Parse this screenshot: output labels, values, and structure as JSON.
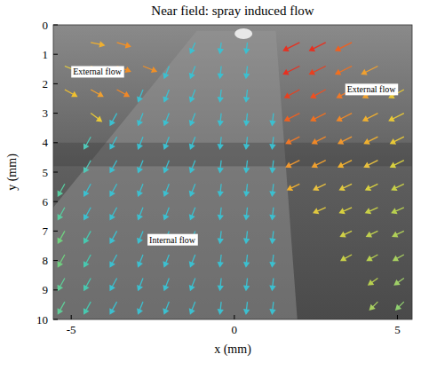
{
  "chart_data": {
    "type": "quiver",
    "title": "Near field: spray induced flow",
    "x_label": "x (mm)",
    "y_label": "y (mm)",
    "xlim": [
      -5.55,
      5.45
    ],
    "ylim": [
      0,
      10
    ],
    "xticks": [
      -5,
      0,
      5
    ],
    "yticks": [
      0,
      1,
      2,
      3,
      4,
      5,
      6,
      7,
      8,
      9,
      10
    ],
    "annotations": [
      {
        "text": "External flow",
        "x": -4.2,
        "y": 1.7
      },
      {
        "text": "External flow",
        "x": 4.2,
        "y": 2.3
      },
      {
        "text": "Internal flow",
        "x": -1.9,
        "y": 7.4
      }
    ],
    "vectors": [
      {
        "x": -4.4,
        "y": 0.6,
        "u": 0.5,
        "v": 0.1,
        "color": "#f0b030"
      },
      {
        "x": -3.6,
        "y": 0.6,
        "u": 0.5,
        "v": 0.15,
        "color": "#f09028"
      },
      {
        "x": -1.2,
        "y": 0.6,
        "u": -0.18,
        "v": 0.4,
        "color": "#3cc0d0"
      },
      {
        "x": -0.4,
        "y": 0.6,
        "u": -0.05,
        "v": 0.4,
        "color": "#3cc0d0"
      },
      {
        "x": 0.4,
        "y": 0.6,
        "u": -0.05,
        "v": 0.4,
        "color": "#3cc0d0"
      },
      {
        "x": 2.0,
        "y": 0.6,
        "u": -0.6,
        "v": 0.3,
        "color": "#e83020"
      },
      {
        "x": 2.8,
        "y": 0.6,
        "u": -0.6,
        "v": 0.3,
        "color": "#e83020"
      },
      {
        "x": 3.6,
        "y": 0.6,
        "u": -0.6,
        "v": 0.3,
        "color": "#f06020"
      },
      {
        "x": -5.2,
        "y": 1.4,
        "u": 0.5,
        "v": 0.2,
        "color": "#e8d040"
      },
      {
        "x": -4.4,
        "y": 1.4,
        "u": 0.5,
        "v": 0.2,
        "color": "#f0b030"
      },
      {
        "x": -3.6,
        "y": 1.4,
        "u": 0.5,
        "v": 0.2,
        "color": "#f09028"
      },
      {
        "x": -2.8,
        "y": 1.4,
        "u": 0.5,
        "v": 0.2,
        "color": "#f09028"
      },
      {
        "x": -2.0,
        "y": 1.4,
        "u": -0.18,
        "v": 0.45,
        "color": "#3cc0d0"
      },
      {
        "x": -1.2,
        "y": 1.4,
        "u": -0.18,
        "v": 0.45,
        "color": "#3cc0d0"
      },
      {
        "x": -0.4,
        "y": 1.4,
        "u": -0.05,
        "v": 0.45,
        "color": "#3cc0d0"
      },
      {
        "x": 0.4,
        "y": 1.4,
        "u": -0.05,
        "v": 0.45,
        "color": "#3cc0d0"
      },
      {
        "x": 2.0,
        "y": 1.4,
        "u": -0.6,
        "v": 0.3,
        "color": "#e83020"
      },
      {
        "x": 2.8,
        "y": 1.4,
        "u": -0.6,
        "v": 0.3,
        "color": "#e84020"
      },
      {
        "x": 3.6,
        "y": 1.4,
        "u": -0.6,
        "v": 0.3,
        "color": "#f07020"
      },
      {
        "x": 4.4,
        "y": 1.4,
        "u": -0.6,
        "v": 0.3,
        "color": "#f0a030"
      },
      {
        "x": -5.2,
        "y": 2.2,
        "u": 0.45,
        "v": 0.25,
        "color": "#f0c030"
      },
      {
        "x": -4.4,
        "y": 2.2,
        "u": 0.45,
        "v": 0.25,
        "color": "#f0a030"
      },
      {
        "x": -3.6,
        "y": 2.2,
        "u": 0.45,
        "v": 0.25,
        "color": "#f08828"
      },
      {
        "x": -2.8,
        "y": 2.2,
        "u": -0.18,
        "v": 0.45,
        "color": "#3cc0d0"
      },
      {
        "x": -2.0,
        "y": 2.2,
        "u": -0.18,
        "v": 0.45,
        "color": "#3cc0d0"
      },
      {
        "x": -1.2,
        "y": 2.2,
        "u": -0.18,
        "v": 0.45,
        "color": "#3cc0d0"
      },
      {
        "x": -0.4,
        "y": 2.2,
        "u": -0.05,
        "v": 0.45,
        "color": "#3cc0d0"
      },
      {
        "x": 0.4,
        "y": 2.2,
        "u": -0.05,
        "v": 0.45,
        "color": "#3cc0d0"
      },
      {
        "x": 2.0,
        "y": 2.2,
        "u": -0.55,
        "v": 0.3,
        "color": "#e84020"
      },
      {
        "x": 2.8,
        "y": 2.2,
        "u": -0.55,
        "v": 0.3,
        "color": "#f05020"
      },
      {
        "x": 3.6,
        "y": 2.2,
        "u": -0.55,
        "v": 0.3,
        "color": "#f07828"
      },
      {
        "x": 4.4,
        "y": 2.2,
        "u": -0.55,
        "v": 0.3,
        "color": "#f0a030"
      },
      {
        "x": 5.2,
        "y": 2.2,
        "u": -0.55,
        "v": 0.3,
        "color": "#e8c838"
      },
      {
        "x": -4.4,
        "y": 3.0,
        "u": 0.4,
        "v": 0.3,
        "color": "#e8c838"
      },
      {
        "x": -3.6,
        "y": 3.0,
        "u": -0.25,
        "v": 0.45,
        "color": "#3cc0d0"
      },
      {
        "x": -2.8,
        "y": 3.0,
        "u": -0.18,
        "v": 0.45,
        "color": "#3cc0d0"
      },
      {
        "x": -2.0,
        "y": 3.0,
        "u": -0.18,
        "v": 0.45,
        "color": "#3cc0d0"
      },
      {
        "x": -1.2,
        "y": 3.0,
        "u": -0.18,
        "v": 0.45,
        "color": "#3cc0d0"
      },
      {
        "x": -0.4,
        "y": 3.0,
        "u": -0.05,
        "v": 0.45,
        "color": "#3cc0d0"
      },
      {
        "x": 0.4,
        "y": 3.0,
        "u": -0.05,
        "v": 0.45,
        "color": "#3cc0d0"
      },
      {
        "x": 1.2,
        "y": 3.0,
        "u": -0.05,
        "v": 0.45,
        "color": "#3cc0d0"
      },
      {
        "x": 2.0,
        "y": 3.0,
        "u": -0.55,
        "v": 0.28,
        "color": "#f06020"
      },
      {
        "x": 2.8,
        "y": 3.0,
        "u": -0.55,
        "v": 0.28,
        "color": "#f07020"
      },
      {
        "x": 3.6,
        "y": 3.0,
        "u": -0.55,
        "v": 0.28,
        "color": "#f08828"
      },
      {
        "x": 4.4,
        "y": 3.0,
        "u": -0.55,
        "v": 0.28,
        "color": "#f0b030"
      },
      {
        "x": 5.2,
        "y": 3.0,
        "u": -0.55,
        "v": 0.28,
        "color": "#e8c838"
      },
      {
        "x": -4.4,
        "y": 3.8,
        "u": -0.25,
        "v": 0.45,
        "color": "#50c8b8"
      },
      {
        "x": -3.6,
        "y": 3.8,
        "u": -0.25,
        "v": 0.45,
        "color": "#3cc0d0"
      },
      {
        "x": -2.8,
        "y": 3.8,
        "u": -0.18,
        "v": 0.45,
        "color": "#3cc0d0"
      },
      {
        "x": -2.0,
        "y": 3.8,
        "u": -0.18,
        "v": 0.45,
        "color": "#3cc0d0"
      },
      {
        "x": -1.2,
        "y": 3.8,
        "u": -0.18,
        "v": 0.45,
        "color": "#3cc0d0"
      },
      {
        "x": -0.4,
        "y": 3.8,
        "u": -0.05,
        "v": 0.45,
        "color": "#3cc0d0"
      },
      {
        "x": 0.4,
        "y": 3.8,
        "u": -0.05,
        "v": 0.45,
        "color": "#3cc0d0"
      },
      {
        "x": 1.2,
        "y": 3.8,
        "u": -0.05,
        "v": 0.45,
        "color": "#3cc0d0"
      },
      {
        "x": 2.0,
        "y": 3.8,
        "u": -0.5,
        "v": 0.25,
        "color": "#f07828"
      },
      {
        "x": 2.8,
        "y": 3.8,
        "u": -0.5,
        "v": 0.25,
        "color": "#f08828"
      },
      {
        "x": 3.6,
        "y": 3.8,
        "u": -0.5,
        "v": 0.25,
        "color": "#f09830"
      },
      {
        "x": 4.4,
        "y": 3.8,
        "u": -0.5,
        "v": 0.25,
        "color": "#f0b030"
      },
      {
        "x": 5.2,
        "y": 3.8,
        "u": -0.5,
        "v": 0.25,
        "color": "#e8c838"
      },
      {
        "x": -4.4,
        "y": 4.6,
        "u": -0.25,
        "v": 0.45,
        "color": "#50c8b8"
      },
      {
        "x": -3.6,
        "y": 4.6,
        "u": -0.25,
        "v": 0.45,
        "color": "#3cc0d0"
      },
      {
        "x": -2.8,
        "y": 4.6,
        "u": -0.18,
        "v": 0.45,
        "color": "#3cc0d0"
      },
      {
        "x": -2.0,
        "y": 4.6,
        "u": -0.18,
        "v": 0.45,
        "color": "#3cc0d0"
      },
      {
        "x": -1.2,
        "y": 4.6,
        "u": -0.18,
        "v": 0.45,
        "color": "#3cc0d0"
      },
      {
        "x": -0.4,
        "y": 4.6,
        "u": -0.05,
        "v": 0.45,
        "color": "#3cc0d0"
      },
      {
        "x": 0.4,
        "y": 4.6,
        "u": -0.05,
        "v": 0.45,
        "color": "#3cc0d0"
      },
      {
        "x": 1.2,
        "y": 4.6,
        "u": -0.05,
        "v": 0.45,
        "color": "#3cc0d0"
      },
      {
        "x": 2.0,
        "y": 4.6,
        "u": -0.5,
        "v": 0.25,
        "color": "#f09830"
      },
      {
        "x": 2.8,
        "y": 4.6,
        "u": -0.5,
        "v": 0.25,
        "color": "#f0a030"
      },
      {
        "x": 3.6,
        "y": 4.6,
        "u": -0.5,
        "v": 0.25,
        "color": "#f0b030"
      },
      {
        "x": 4.4,
        "y": 4.6,
        "u": -0.5,
        "v": 0.25,
        "color": "#e8c040"
      },
      {
        "x": 5.2,
        "y": 4.6,
        "u": -0.5,
        "v": 0.25,
        "color": "#d8d040"
      },
      {
        "x": -5.2,
        "y": 5.4,
        "u": -0.25,
        "v": 0.45,
        "color": "#58cca0"
      },
      {
        "x": -4.4,
        "y": 5.4,
        "u": -0.25,
        "v": 0.45,
        "color": "#3cc0d0"
      },
      {
        "x": -3.6,
        "y": 5.4,
        "u": -0.25,
        "v": 0.45,
        "color": "#3cc0d0"
      },
      {
        "x": -2.8,
        "y": 5.4,
        "u": -0.18,
        "v": 0.45,
        "color": "#3cc0d0"
      },
      {
        "x": -2.0,
        "y": 5.4,
        "u": -0.18,
        "v": 0.45,
        "color": "#3cc0d0"
      },
      {
        "x": -1.2,
        "y": 5.4,
        "u": -0.18,
        "v": 0.45,
        "color": "#3cc0d0"
      },
      {
        "x": -0.4,
        "y": 5.4,
        "u": -0.05,
        "v": 0.45,
        "color": "#3cc0d0"
      },
      {
        "x": 0.4,
        "y": 5.4,
        "u": -0.05,
        "v": 0.45,
        "color": "#3cc0d0"
      },
      {
        "x": 1.2,
        "y": 5.4,
        "u": -0.05,
        "v": 0.45,
        "color": "#3cc0d0"
      },
      {
        "x": 2.0,
        "y": 5.4,
        "u": -0.45,
        "v": 0.22,
        "color": "#f0b030"
      },
      {
        "x": 2.8,
        "y": 5.4,
        "u": -0.45,
        "v": 0.22,
        "color": "#e8c040"
      },
      {
        "x": 3.6,
        "y": 5.4,
        "u": -0.45,
        "v": 0.22,
        "color": "#e0c840"
      },
      {
        "x": 4.4,
        "y": 5.4,
        "u": -0.45,
        "v": 0.22,
        "color": "#d8d040"
      },
      {
        "x": 5.2,
        "y": 5.4,
        "u": -0.45,
        "v": 0.22,
        "color": "#c8d048"
      },
      {
        "x": -5.2,
        "y": 6.2,
        "u": -0.25,
        "v": 0.45,
        "color": "#58cca0"
      },
      {
        "x": -4.4,
        "y": 6.2,
        "u": -0.25,
        "v": 0.45,
        "color": "#3cc0d0"
      },
      {
        "x": -3.6,
        "y": 6.2,
        "u": -0.25,
        "v": 0.45,
        "color": "#3cc0d0"
      },
      {
        "x": -2.8,
        "y": 6.2,
        "u": -0.18,
        "v": 0.45,
        "color": "#3cc0d0"
      },
      {
        "x": -2.0,
        "y": 6.2,
        "u": -0.18,
        "v": 0.45,
        "color": "#3cc0d0"
      },
      {
        "x": -1.2,
        "y": 6.2,
        "u": -0.18,
        "v": 0.45,
        "color": "#3cc0d0"
      },
      {
        "x": -0.4,
        "y": 6.2,
        "u": -0.05,
        "v": 0.45,
        "color": "#3cc0d0"
      },
      {
        "x": 0.4,
        "y": 6.2,
        "u": -0.05,
        "v": 0.45,
        "color": "#3cc0d0"
      },
      {
        "x": 1.2,
        "y": 6.2,
        "u": -0.05,
        "v": 0.45,
        "color": "#3cc0d0"
      },
      {
        "x": 2.8,
        "y": 6.2,
        "u": -0.45,
        "v": 0.2,
        "color": "#e0c840"
      },
      {
        "x": 3.6,
        "y": 6.2,
        "u": -0.45,
        "v": 0.2,
        "color": "#d8d040"
      },
      {
        "x": 4.4,
        "y": 6.2,
        "u": -0.45,
        "v": 0.2,
        "color": "#c8d048"
      },
      {
        "x": 5.2,
        "y": 6.2,
        "u": -0.45,
        "v": 0.2,
        "color": "#b8d050"
      },
      {
        "x": -5.2,
        "y": 7.0,
        "u": -0.25,
        "v": 0.45,
        "color": "#70d080"
      },
      {
        "x": -4.4,
        "y": 7.0,
        "u": -0.25,
        "v": 0.45,
        "color": "#48c8b0"
      },
      {
        "x": -3.6,
        "y": 7.0,
        "u": -0.25,
        "v": 0.45,
        "color": "#3cc0d0"
      },
      {
        "x": -2.8,
        "y": 7.0,
        "u": -0.18,
        "v": 0.45,
        "color": "#3cc0d0"
      },
      {
        "x": -2.0,
        "y": 7.0,
        "u": -0.18,
        "v": 0.45,
        "color": "#3cc0d0"
      },
      {
        "x": -1.2,
        "y": 7.0,
        "u": -0.18,
        "v": 0.45,
        "color": "#3cc0d0"
      },
      {
        "x": -0.4,
        "y": 7.0,
        "u": -0.05,
        "v": 0.45,
        "color": "#3cc0d0"
      },
      {
        "x": 0.4,
        "y": 7.0,
        "u": -0.05,
        "v": 0.45,
        "color": "#3cc0d0"
      },
      {
        "x": 1.2,
        "y": 7.0,
        "u": -0.05,
        "v": 0.45,
        "color": "#3cc0d0"
      },
      {
        "x": 3.6,
        "y": 7.0,
        "u": -0.42,
        "v": 0.2,
        "color": "#d0d048"
      },
      {
        "x": 4.4,
        "y": 7.0,
        "u": -0.42,
        "v": 0.2,
        "color": "#c0d050"
      },
      {
        "x": 5.2,
        "y": 7.0,
        "u": -0.42,
        "v": 0.2,
        "color": "#b0d058"
      },
      {
        "x": -5.2,
        "y": 7.8,
        "u": -0.25,
        "v": 0.45,
        "color": "#70d080"
      },
      {
        "x": -4.4,
        "y": 7.8,
        "u": -0.25,
        "v": 0.45,
        "color": "#48c8b0"
      },
      {
        "x": -3.6,
        "y": 7.8,
        "u": -0.25,
        "v": 0.45,
        "color": "#3cc0d0"
      },
      {
        "x": -2.8,
        "y": 7.8,
        "u": -0.18,
        "v": 0.45,
        "color": "#3cc0d0"
      },
      {
        "x": -2.0,
        "y": 7.8,
        "u": -0.18,
        "v": 0.45,
        "color": "#3cc0d0"
      },
      {
        "x": -1.2,
        "y": 7.8,
        "u": -0.18,
        "v": 0.45,
        "color": "#3cc0d0"
      },
      {
        "x": -0.4,
        "y": 7.8,
        "u": -0.05,
        "v": 0.45,
        "color": "#3cc0d0"
      },
      {
        "x": 0.4,
        "y": 7.8,
        "u": -0.05,
        "v": 0.45,
        "color": "#3cc0d0"
      },
      {
        "x": 1.2,
        "y": 7.8,
        "u": -0.05,
        "v": 0.45,
        "color": "#3cc0d0"
      },
      {
        "x": 3.6,
        "y": 7.8,
        "u": -0.4,
        "v": 0.22,
        "color": "#c8d048"
      },
      {
        "x": 4.4,
        "y": 7.8,
        "u": -0.4,
        "v": 0.22,
        "color": "#b8d050"
      },
      {
        "x": 5.2,
        "y": 7.8,
        "u": -0.4,
        "v": 0.22,
        "color": "#a8d060"
      },
      {
        "x": -5.2,
        "y": 8.6,
        "u": -0.25,
        "v": 0.45,
        "color": "#60cc98"
      },
      {
        "x": -4.4,
        "y": 8.6,
        "u": -0.25,
        "v": 0.45,
        "color": "#48c8b0"
      },
      {
        "x": -3.6,
        "y": 8.6,
        "u": -0.25,
        "v": 0.45,
        "color": "#3cc0d0"
      },
      {
        "x": -2.8,
        "y": 8.6,
        "u": -0.18,
        "v": 0.45,
        "color": "#3cc0d0"
      },
      {
        "x": -2.0,
        "y": 8.6,
        "u": -0.18,
        "v": 0.45,
        "color": "#3cc0d0"
      },
      {
        "x": -1.2,
        "y": 8.6,
        "u": -0.18,
        "v": 0.45,
        "color": "#3cc0d0"
      },
      {
        "x": -0.4,
        "y": 8.6,
        "u": -0.05,
        "v": 0.45,
        "color": "#3cc0d0"
      },
      {
        "x": 0.4,
        "y": 8.6,
        "u": -0.05,
        "v": 0.45,
        "color": "#3cc0d0"
      },
      {
        "x": 1.2,
        "y": 8.6,
        "u": -0.05,
        "v": 0.45,
        "color": "#3cc0d0"
      },
      {
        "x": 4.4,
        "y": 8.6,
        "u": -0.35,
        "v": 0.25,
        "color": "#b8d050"
      },
      {
        "x": 5.2,
        "y": 8.6,
        "u": -0.35,
        "v": 0.25,
        "color": "#a0d068"
      },
      {
        "x": -5.2,
        "y": 9.4,
        "u": -0.25,
        "v": 0.45,
        "color": "#60cc98"
      },
      {
        "x": -4.4,
        "y": 9.4,
        "u": -0.25,
        "v": 0.45,
        "color": "#48c8b0"
      },
      {
        "x": -3.6,
        "y": 9.4,
        "u": -0.25,
        "v": 0.45,
        "color": "#3cc0d0"
      },
      {
        "x": -2.8,
        "y": 9.4,
        "u": -0.18,
        "v": 0.45,
        "color": "#3cc0d0"
      },
      {
        "x": -2.0,
        "y": 9.4,
        "u": -0.18,
        "v": 0.45,
        "color": "#3cc0d0"
      },
      {
        "x": -1.2,
        "y": 9.4,
        "u": -0.18,
        "v": 0.45,
        "color": "#3cc0d0"
      },
      {
        "x": -0.4,
        "y": 9.4,
        "u": -0.05,
        "v": 0.45,
        "color": "#3cc0d0"
      },
      {
        "x": 0.4,
        "y": 9.4,
        "u": -0.05,
        "v": 0.45,
        "color": "#3cc0d0"
      },
      {
        "x": 1.2,
        "y": 9.4,
        "u": -0.05,
        "v": 0.45,
        "color": "#3cc0d0"
      },
      {
        "x": 4.4,
        "y": 9.4,
        "u": -0.3,
        "v": 0.3,
        "color": "#a8d060"
      },
      {
        "x": 5.2,
        "y": 9.4,
        "u": -0.3,
        "v": 0.3,
        "color": "#90d070"
      }
    ]
  }
}
